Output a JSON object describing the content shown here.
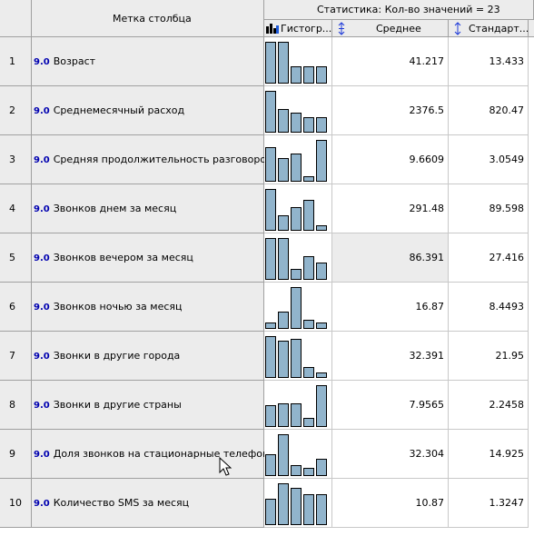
{
  "header": {
    "column_label": "Метка столбца",
    "group_title": "Статистика: Кол-во значений = 23",
    "columns": [
      {
        "label": "Гистогр...",
        "icon": "histogram-icon"
      },
      {
        "label": "Среднее",
        "icon": "sort-icon"
      },
      {
        "label": "Стандарт...",
        "icon": "sort-icon"
      }
    ]
  },
  "rows": [
    {
      "num": "1",
      "prefix": "9.0",
      "label": "Возраст",
      "mean": "41.217",
      "std": "13.433",
      "hist": [
        0.95,
        0.95,
        0.4,
        0.4,
        0.4
      ]
    },
    {
      "num": "2",
      "prefix": "9.0",
      "label": "Среднемесячный расход",
      "mean": "2376.5",
      "std": "820.47",
      "hist": [
        0.95,
        0.55,
        0.45,
        0.35,
        0.35
      ]
    },
    {
      "num": "3",
      "prefix": "9.0",
      "label": "Средняя продолжительность разговоров",
      "mean": "9.6609",
      "std": "3.0549",
      "hist": [
        0.8,
        0.55,
        0.65,
        0.12,
        0.95
      ]
    },
    {
      "num": "4",
      "prefix": "9.0",
      "label": "Звонков днем за месяц",
      "mean": "291.48",
      "std": "89.598",
      "hist": [
        0.95,
        0.35,
        0.55,
        0.7,
        0.12
      ]
    },
    {
      "num": "5",
      "prefix": "9.0",
      "label": "Звонков вечером за месяц",
      "mean": "86.391",
      "std": "27.416",
      "hist": [
        0.95,
        0.95,
        0.25,
        0.55,
        0.4
      ]
    },
    {
      "num": "6",
      "prefix": "9.0",
      "label": "Звонков ночью за месяц",
      "mean": "16.87",
      "std": "8.4493",
      "hist": [
        0.15,
        0.4,
        0.95,
        0.2,
        0.15
      ]
    },
    {
      "num": "7",
      "prefix": "9.0",
      "label": "Звонки в другие города",
      "mean": "32.391",
      "std": "21.95",
      "hist": [
        0.95,
        0.85,
        0.9,
        0.25,
        0.12
      ]
    },
    {
      "num": "8",
      "prefix": "9.0",
      "label": "Звонки в другие страны",
      "mean": "7.9565",
      "std": "2.2458",
      "hist": [
        0.5,
        0.55,
        0.55,
        0.2,
        0.95
      ]
    },
    {
      "num": "9",
      "prefix": "9.0",
      "label": "Доля звонков на стационарные телефоны",
      "mean": "32.304",
      "std": "14.925",
      "hist": [
        0.5,
        0.95,
        0.25,
        0.18,
        0.4
      ]
    },
    {
      "num": "10",
      "prefix": "9.0",
      "label": "Количество SMS за месяц",
      "mean": "10.87",
      "std": "1.3247",
      "hist": [
        0.6,
        0.95,
        0.85,
        0.7,
        0.7
      ]
    }
  ],
  "colors": {
    "header_bg": "#ececec",
    "bar_fill": "#91b4cc",
    "prefix_color": "#0000b0",
    "selected_cell_bg": "#ececec"
  }
}
